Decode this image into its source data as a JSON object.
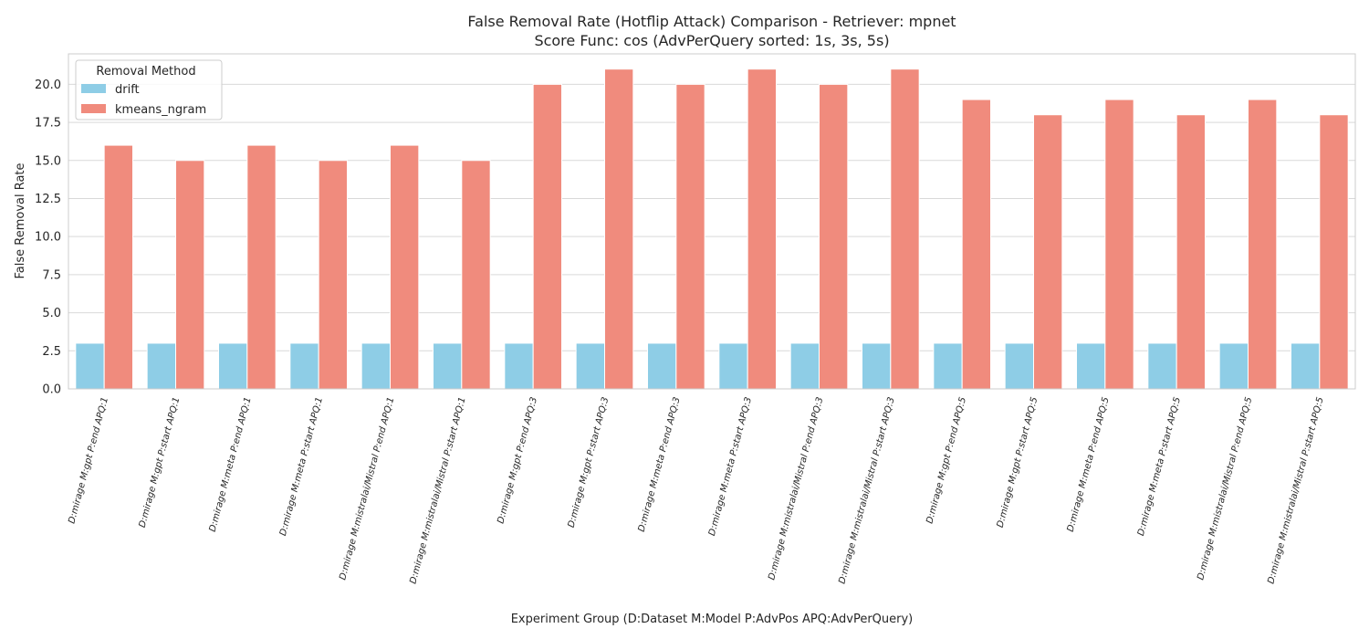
{
  "chart_data": {
    "type": "bar",
    "title": "False Removal Rate (Hotflip Attack) Comparison - Retriever: mpnet",
    "subtitle": "Score Func: cos (AdvPerQuery sorted: 1s, 3s, 5s)",
    "xlabel": "Experiment Group (D:Dataset M:Model P:AdvPos APQ:AdvPerQuery)",
    "ylabel": "False Removal Rate",
    "ylim": [
      0,
      22
    ],
    "yticks": [
      0,
      2.5,
      5,
      7.5,
      10,
      12.5,
      15,
      17.5,
      20
    ],
    "ytick_labels": [
      "0.0",
      "2.5",
      "5.0",
      "7.5",
      "10.0",
      "12.5",
      "15.0",
      "17.5",
      "20.0"
    ],
    "grid": true,
    "legend_title": "Removal Method",
    "legend_position": "top-left",
    "categories": [
      "D:mirage M:gpt P:end APQ:1",
      "D:mirage M:gpt P:start APQ:1",
      "D:mirage M:meta P:end APQ:1",
      "D:mirage M:meta P:start APQ:1",
      "D:mirage M:mistralai/Mistral P:end APQ:1",
      "D:mirage M:mistralai/Mistral P:start APQ:1",
      "D:mirage M:gpt P:end APQ:3",
      "D:mirage M:gpt P:start APQ:3",
      "D:mirage M:meta P:end APQ:3",
      "D:mirage M:meta P:start APQ:3",
      "D:mirage M:mistralai/Mistral P:end APQ:3",
      "D:mirage M:mistralai/Mistral P:start APQ:3",
      "D:mirage M:gpt P:end APQ:5",
      "D:mirage M:gpt P:start APQ:5",
      "D:mirage M:meta P:end APQ:5",
      "D:mirage M:meta P:start APQ:5",
      "D:mirage M:mistralai/Mistral P:end APQ:5",
      "D:mirage M:mistralai/Mistral P:start APQ:5"
    ],
    "series": [
      {
        "name": "drift",
        "color": "#8ecde6",
        "values": [
          3,
          3,
          3,
          3,
          3,
          3,
          3,
          3,
          3,
          3,
          3,
          3,
          3,
          3,
          3,
          3,
          3,
          3
        ]
      },
      {
        "name": "kmeans_ngram",
        "color": "#f08b7d",
        "values": [
          16,
          15,
          16,
          15,
          16,
          15,
          20,
          21,
          20,
          21,
          20,
          21,
          19,
          18,
          19,
          18,
          19,
          18
        ]
      }
    ]
  }
}
